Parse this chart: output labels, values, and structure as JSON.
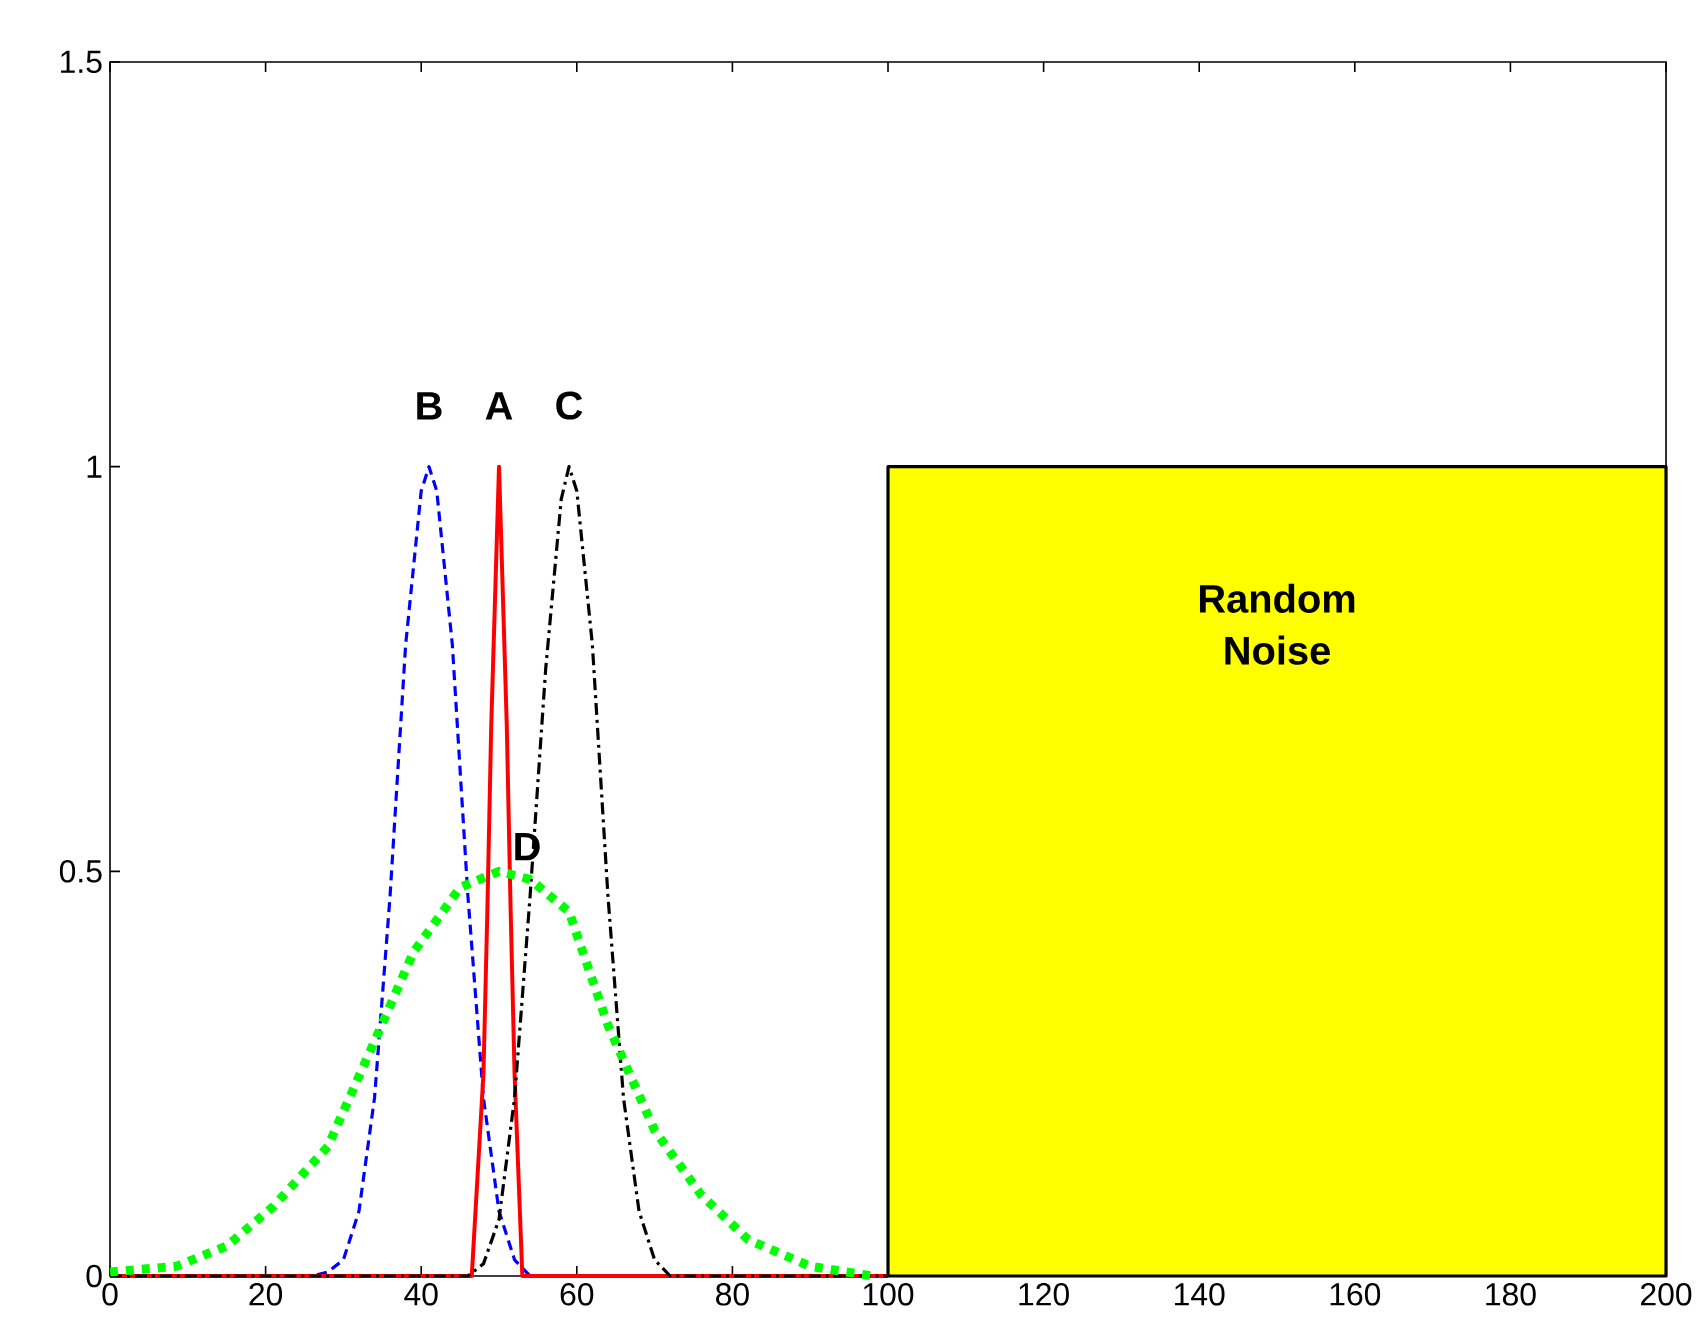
{
  "chart_data": {
    "type": "line",
    "xlim": [
      0,
      200
    ],
    "ylim": [
      0,
      1.5
    ],
    "xticks": [
      0,
      20,
      40,
      60,
      80,
      100,
      120,
      140,
      160,
      180,
      200
    ],
    "yticks": [
      0,
      0.5,
      1,
      1.5
    ],
    "grid": false,
    "series": [
      {
        "name": "B",
        "color": "#0000ff",
        "line_style": "dashed",
        "x": [
          0,
          26,
          28,
          30,
          32,
          34,
          36,
          38,
          40,
          41,
          42,
          44,
          46,
          48,
          50,
          52,
          54,
          100
        ],
        "values": [
          0,
          0,
          0.005,
          0.02,
          0.08,
          0.22,
          0.47,
          0.78,
          0.97,
          1,
          0.97,
          0.78,
          0.47,
          0.22,
          0.08,
          0.02,
          0,
          0
        ]
      },
      {
        "name": "A",
        "color": "#ff0000",
        "line_style": "solid",
        "x": [
          0,
          46.5,
          48,
          48.5,
          49,
          50,
          51,
          51.5,
          52,
          53,
          100
        ],
        "values": [
          0,
          0,
          0.25,
          0.45,
          0.68,
          1,
          0.68,
          0.45,
          0.25,
          0,
          0
        ]
      },
      {
        "name": "C",
        "color": "#000000",
        "line_style": "dashdot",
        "x": [
          0,
          46,
          48,
          50,
          52,
          54,
          56,
          58,
          59,
          60,
          62,
          64,
          66,
          68,
          70,
          72,
          100
        ],
        "values": [
          0,
          0,
          0.015,
          0.07,
          0.22,
          0.47,
          0.75,
          0.96,
          1,
          0.97,
          0.78,
          0.47,
          0.22,
          0.08,
          0.02,
          0,
          0
        ]
      },
      {
        "name": "D",
        "color": "#00ff00",
        "line_style": "dotted",
        "x": [
          0,
          8.5,
          15,
          21,
          28,
          34,
          39,
          45,
          50,
          54,
          59,
          64,
          70,
          76,
          82,
          90,
          98
        ],
        "values": [
          0.005,
          0.012,
          0.037,
          0.086,
          0.16,
          0.29,
          0.4,
          0.48,
          0.5,
          0.49,
          0.45,
          0.31,
          0.18,
          0.1,
          0.045,
          0.012,
          0
        ]
      },
      {
        "name": "Random Noise",
        "type": "area",
        "color": "#ffff00",
        "x": [
          100,
          100,
          200,
          200
        ],
        "values": [
          0,
          1,
          1,
          0
        ]
      }
    ]
  }
}
